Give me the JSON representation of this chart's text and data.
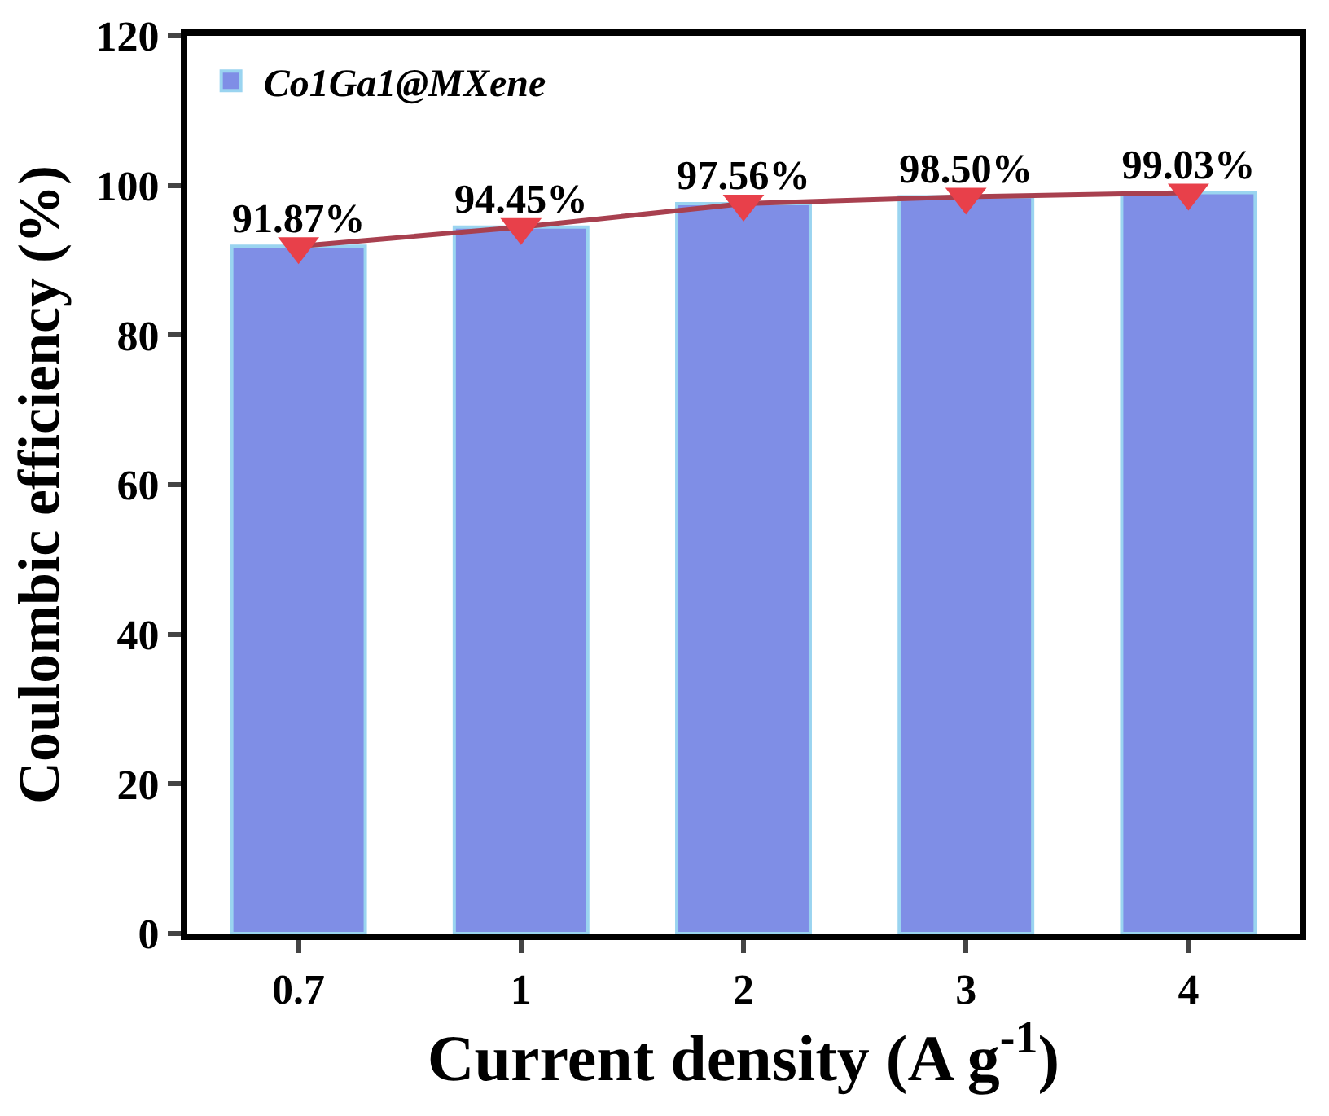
{
  "chart_data": {
    "type": "bar",
    "xlabel": "Current density (A g$^{-1}$)",
    "ylabel": "Coulombic efficiency (%)",
    "categories": [
      "0.7",
      "1",
      "2",
      "3",
      "4"
    ],
    "series": [
      {
        "name": "Co1Ga1@MXene",
        "color": "#7f8ee6",
        "values": [
          91.87,
          94.45,
          97.56,
          98.5,
          99.03
        ],
        "value_labels": [
          "91.87%",
          "94.45%",
          "97.56%",
          "98.50%",
          "99.03%"
        ]
      },
      {
        "type": "line",
        "color": "#e8404a",
        "values": [
          91.87,
          94.45,
          97.56,
          98.5,
          99.03
        ],
        "marker": "triangle",
        "line_style": "solid"
      }
    ],
    "ylim": [
      0,
      120
    ],
    "yticks": [
      0,
      20,
      40,
      60,
      80,
      100,
      120
    ],
    "grid": false,
    "legend": "top left"
  }
}
